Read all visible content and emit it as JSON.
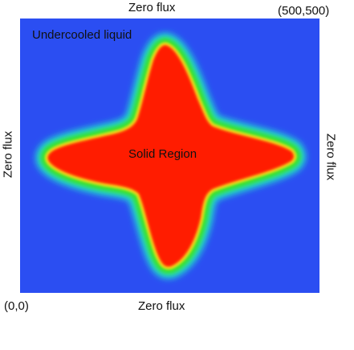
{
  "colors": {
    "liquid": "#2b4ef2",
    "interface_outer": "#22d8d0",
    "interface_mid": "#39e22b",
    "interface_inner": "#f5e21a",
    "solid": "#ff1a00"
  },
  "boundaries": {
    "top": "Zero flux",
    "bottom": "Zero flux",
    "left": "Zero flux",
    "right": "Zero flux"
  },
  "corners": {
    "top_right": "(500,500)",
    "bottom_left": "(0,0)"
  },
  "regions": {
    "liquid": "Undercooled liquid",
    "solid": "Solid Region"
  }
}
